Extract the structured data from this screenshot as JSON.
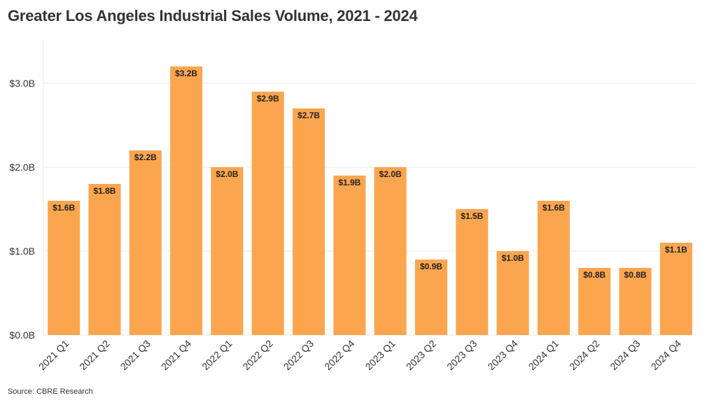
{
  "title": "Greater Los Angeles Industrial Sales Volume, 2021 - 2024",
  "source": "Source: CBRE Research",
  "colors": {
    "bar": "#FBA64F",
    "grid": "#EBEBEB",
    "text": "#222222"
  },
  "chart_data": {
    "type": "bar",
    "title": "Greater Los Angeles Industrial Sales Volume, 2021 - 2024",
    "xlabel": "",
    "ylabel": "",
    "categories": [
      "2021 Q1",
      "2021 Q2",
      "2021 Q3",
      "2021 Q4",
      "2022 Q1",
      "2022 Q2",
      "2022 Q3",
      "2022 Q4",
      "2023 Q1",
      "2023 Q2",
      "2023 Q3",
      "2023 Q4",
      "2024 Q1",
      "2024 Q2",
      "2024 Q3",
      "2024 Q4"
    ],
    "values": [
      1.6,
      1.8,
      2.2,
      3.2,
      2.0,
      2.9,
      2.7,
      1.9,
      2.0,
      0.9,
      1.5,
      1.0,
      1.6,
      0.8,
      0.8,
      1.1
    ],
    "data_labels": [
      "$1.6B",
      "$1.8B",
      "$2.2B",
      "$3.2B",
      "$2.0B",
      "$2.9B",
      "$2.7B",
      "$1.9B",
      "$2.0B",
      "$0.9B",
      "$1.5B",
      "$1.0B",
      "$1.6B",
      "$0.8B",
      "$0.8B",
      "$1.1B"
    ],
    "yticks": [
      0,
      1,
      2,
      3
    ],
    "ytick_labels": [
      "$0.0B",
      "$1.0B",
      "$2.0B",
      "$3.0B"
    ],
    "ylim": [
      0,
      3.5
    ],
    "grid": true,
    "legend": "none"
  }
}
